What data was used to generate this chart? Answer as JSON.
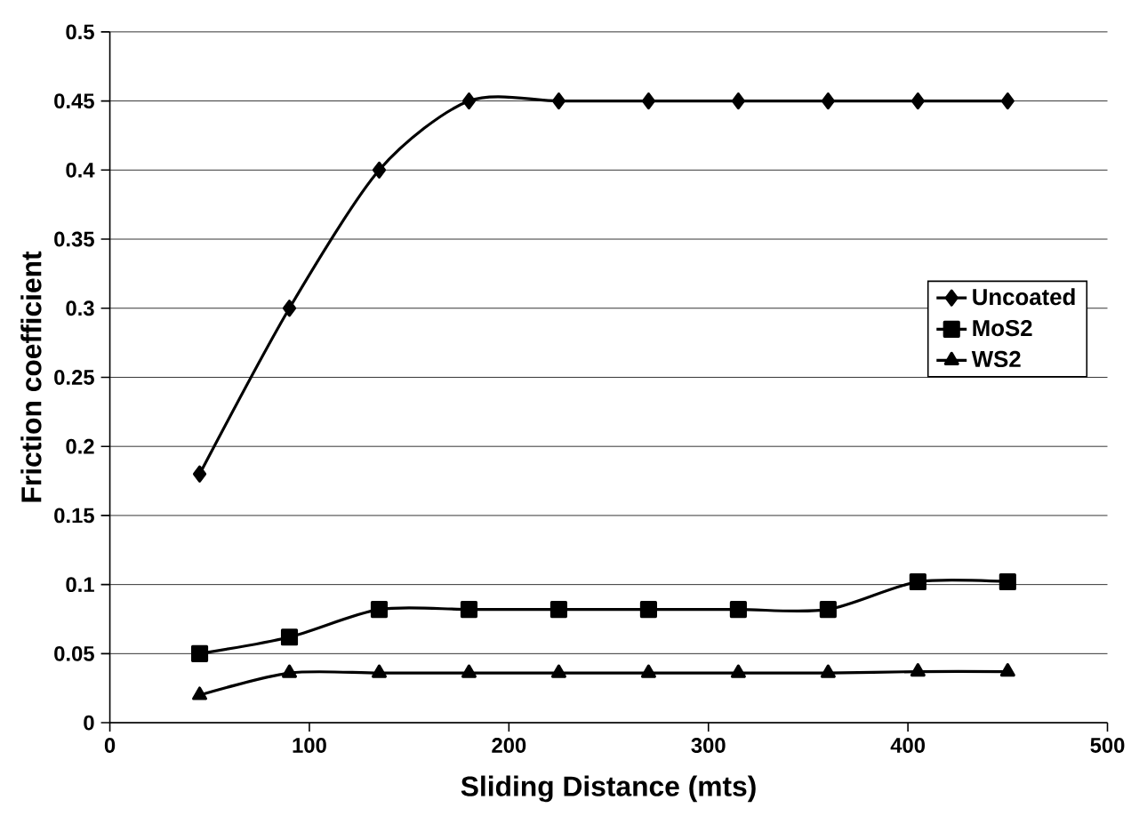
{
  "chart_data": {
    "type": "line",
    "xlabel": "Sliding Distance (mts)",
    "ylabel": "Friction coefficient",
    "x": [
      45,
      90,
      135,
      180,
      225,
      270,
      315,
      360,
      405,
      450
    ],
    "series": [
      {
        "name": "Uncoated",
        "color": "#000000",
        "marker": "diamond",
        "values": [
          0.18,
          0.3,
          0.4,
          0.45,
          0.45,
          0.45,
          0.45,
          0.45,
          0.45,
          0.45
        ]
      },
      {
        "name": "MoS2",
        "color": "#000000",
        "marker": "square",
        "values": [
          0.05,
          0.062,
          0.082,
          0.082,
          0.082,
          0.082,
          0.082,
          0.082,
          0.102,
          0.102
        ]
      },
      {
        "name": "WS2",
        "color": "#000000",
        "marker": "triangle",
        "values": [
          0.02,
          0.036,
          0.036,
          0.036,
          0.036,
          0.036,
          0.036,
          0.036,
          0.037,
          0.037
        ]
      }
    ],
    "xlim": [
      0,
      500
    ],
    "xticks": [
      0,
      100,
      200,
      300,
      400,
      500
    ],
    "ylim": [
      0,
      0.5
    ],
    "yticks": [
      0,
      0.05,
      0.1,
      0.15,
      0.2,
      0.25,
      0.3,
      0.35,
      0.4,
      0.45,
      0.5
    ],
    "grid": "y",
    "legend": "right",
    "line_style": "solid"
  }
}
